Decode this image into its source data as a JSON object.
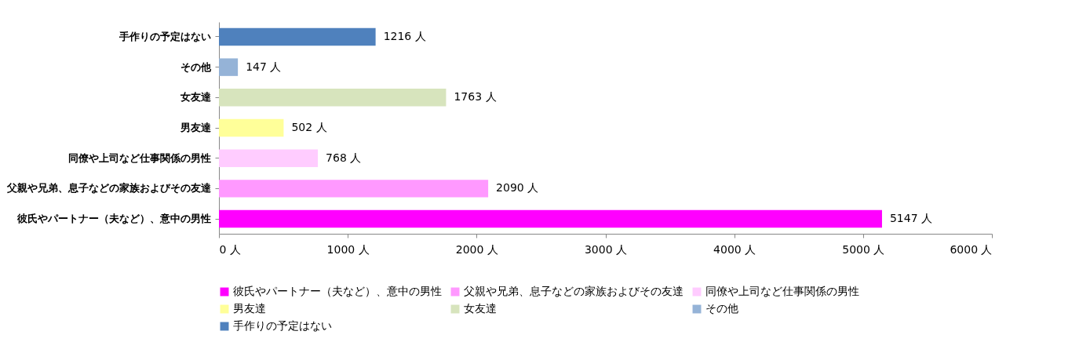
{
  "chart_data": {
    "type": "bar",
    "orientation": "horizontal",
    "grid": false,
    "categories": [
      "手作りの予定はない",
      "その他",
      "女友達",
      "男友達",
      "同僚や上司など仕事関係の男性",
      "父親や兄弟、息子などの家族およびその友達",
      "彼氏やパートナー（夫など）、意中の男性"
    ],
    "series": [
      {
        "name": "彼氏やパートナー（夫など）、意中の男性",
        "color": "#ff00ff",
        "values": [
          null,
          null,
          null,
          null,
          null,
          null,
          5147
        ],
        "value_labels": [
          null,
          null,
          null,
          null,
          null,
          null,
          "5147 人"
        ]
      },
      {
        "name": "父親や兄弟、息子などの家族およびその友達",
        "color": "#ff99ff",
        "values": [
          null,
          null,
          null,
          null,
          null,
          2090,
          null
        ],
        "value_labels": [
          null,
          null,
          null,
          null,
          null,
          "2090 人",
          null
        ]
      },
      {
        "name": "同僚や上司など仕事関係の男性",
        "color": "#ffccff",
        "values": [
          null,
          null,
          null,
          null,
          768,
          null,
          null
        ],
        "value_labels": [
          null,
          null,
          null,
          null,
          "768 人",
          null,
          null
        ]
      },
      {
        "name": "男友達",
        "color": "#ffff99",
        "values": [
          null,
          null,
          null,
          502,
          null,
          null,
          null
        ],
        "value_labels": [
          null,
          null,
          null,
          "502 人",
          null,
          null,
          null
        ]
      },
      {
        "name": "女友達",
        "color": "#d7e4bd",
        "values": [
          null,
          null,
          1763,
          null,
          null,
          null,
          null
        ],
        "value_labels": [
          null,
          null,
          "1763 人",
          null,
          null,
          null,
          null
        ]
      },
      {
        "name": "その他",
        "color": "#95b3d7",
        "values": [
          null,
          147,
          null,
          null,
          null,
          null,
          null
        ],
        "value_labels": [
          null,
          "147 人",
          null,
          null,
          null,
          null,
          null
        ]
      },
      {
        "name": "手作りの予定はない",
        "color": "#4f81bd",
        "values": [
          1216,
          null,
          null,
          null,
          null,
          null,
          null
        ],
        "value_labels": [
          "1216 人",
          null,
          null,
          null,
          null,
          null,
          null
        ]
      }
    ],
    "xlim": [
      0,
      6000
    ],
    "xticks": [
      {
        "value": 0,
        "label": "0 人"
      },
      {
        "value": 1000,
        "label": "1000 人"
      },
      {
        "value": 2000,
        "label": "2000 人"
      },
      {
        "value": 3000,
        "label": "3000 人"
      },
      {
        "value": 4000,
        "label": "4000 人"
      },
      {
        "value": 5000,
        "label": "5000 人"
      },
      {
        "value": 6000,
        "label": "6000 人"
      }
    ],
    "legend": "bottom"
  }
}
